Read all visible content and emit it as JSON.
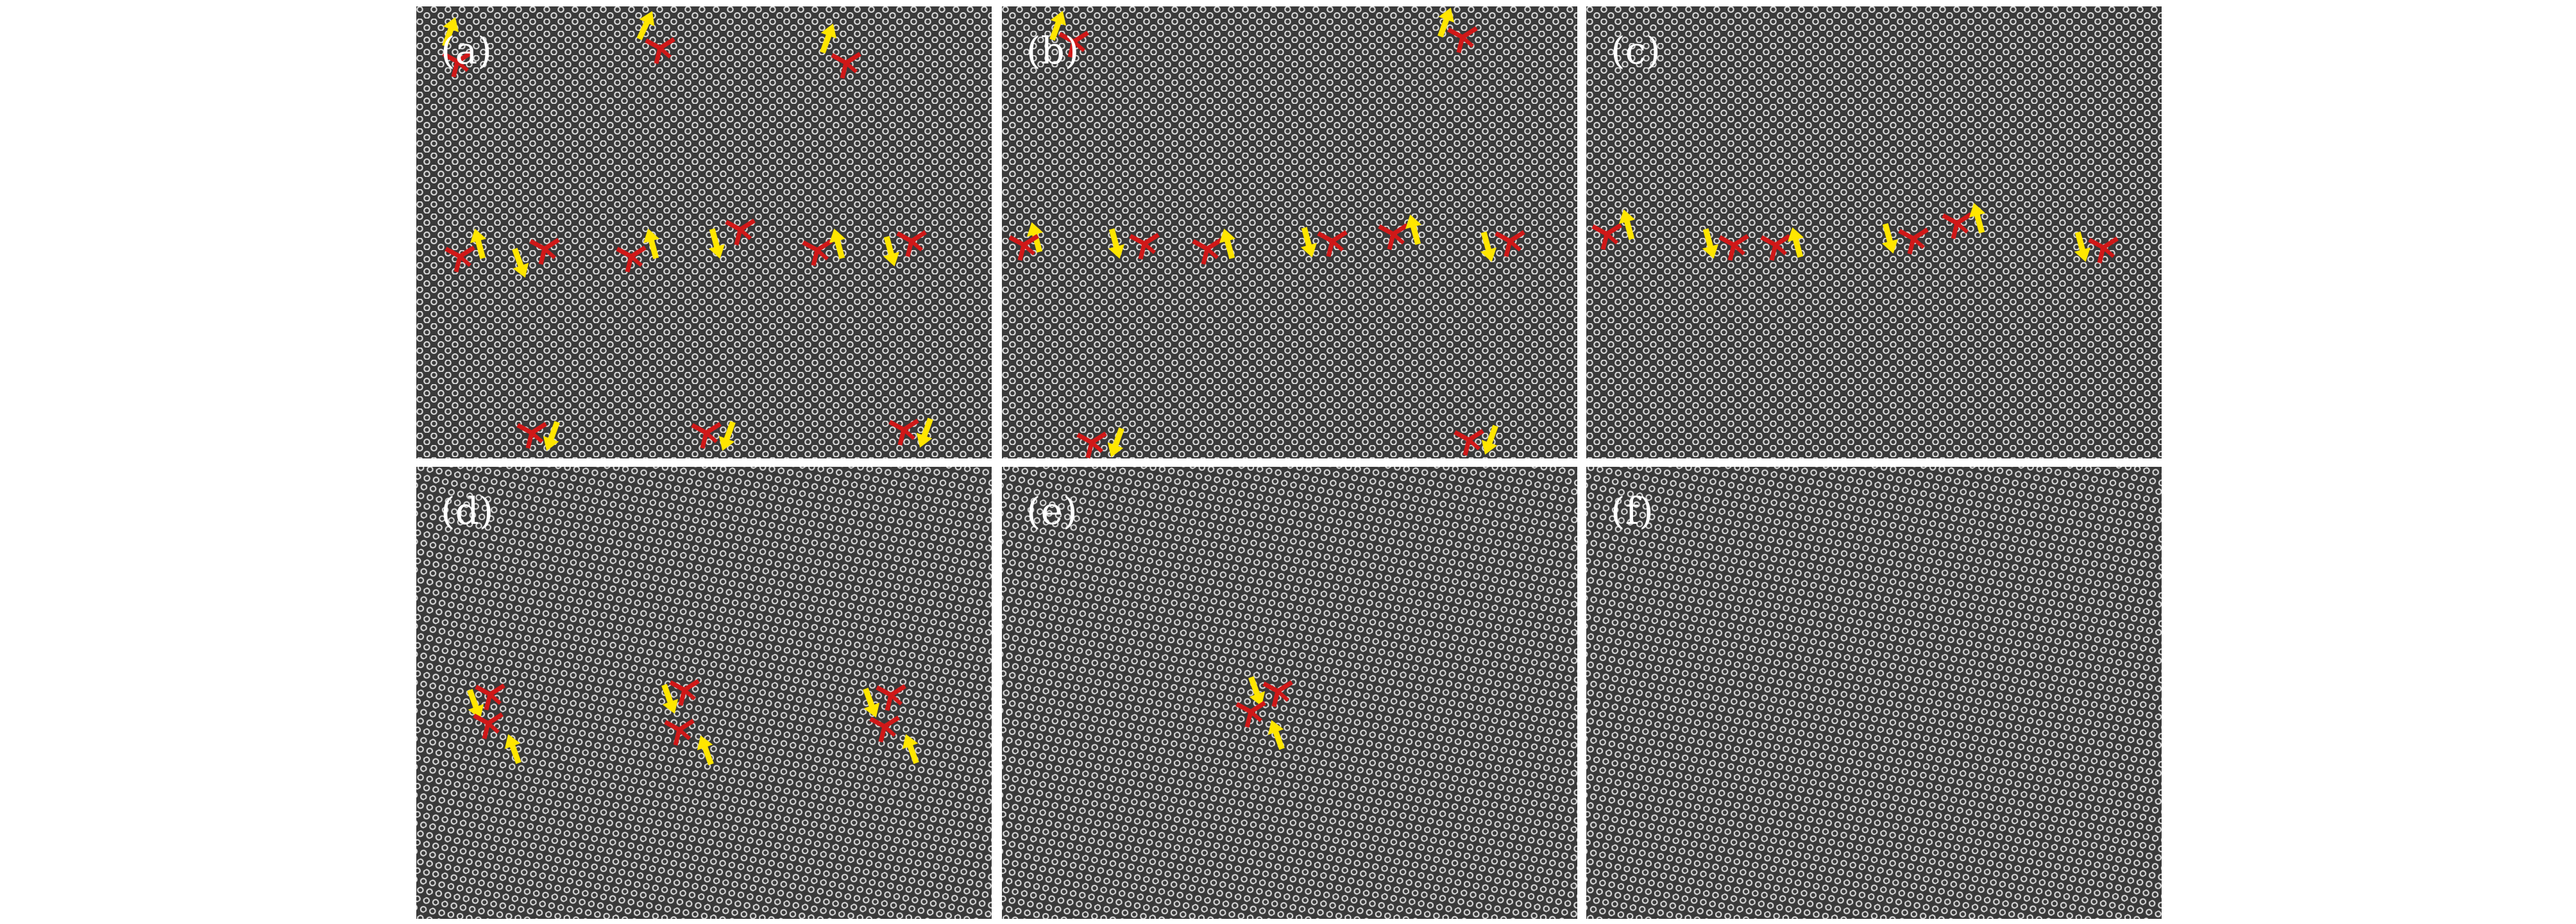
{
  "figure": {
    "panels": [
      {
        "id": "a",
        "label": "(a)",
        "tilt": "horizontal"
      },
      {
        "id": "b",
        "label": "(b)",
        "tilt": "horizontal"
      },
      {
        "id": "c",
        "label": "(c)",
        "tilt": "horizontal"
      },
      {
        "id": "d",
        "label": "(d)",
        "tilt": "tilted"
      },
      {
        "id": "e",
        "label": "(e)",
        "tilt": "tilted"
      },
      {
        "id": "f",
        "label": "(f)",
        "tilt": "tilted"
      }
    ],
    "colors": {
      "background": "#ffffff",
      "lattice_bg": "#3a3a3a",
      "atom": "#d8d8d8",
      "arrow": "#ffe600",
      "dislocation_marker": "#d01818",
      "label": "#ffffff"
    },
    "marker_icons": [
      "arrow-icon",
      "dislocation-marker-icon"
    ]
  }
}
